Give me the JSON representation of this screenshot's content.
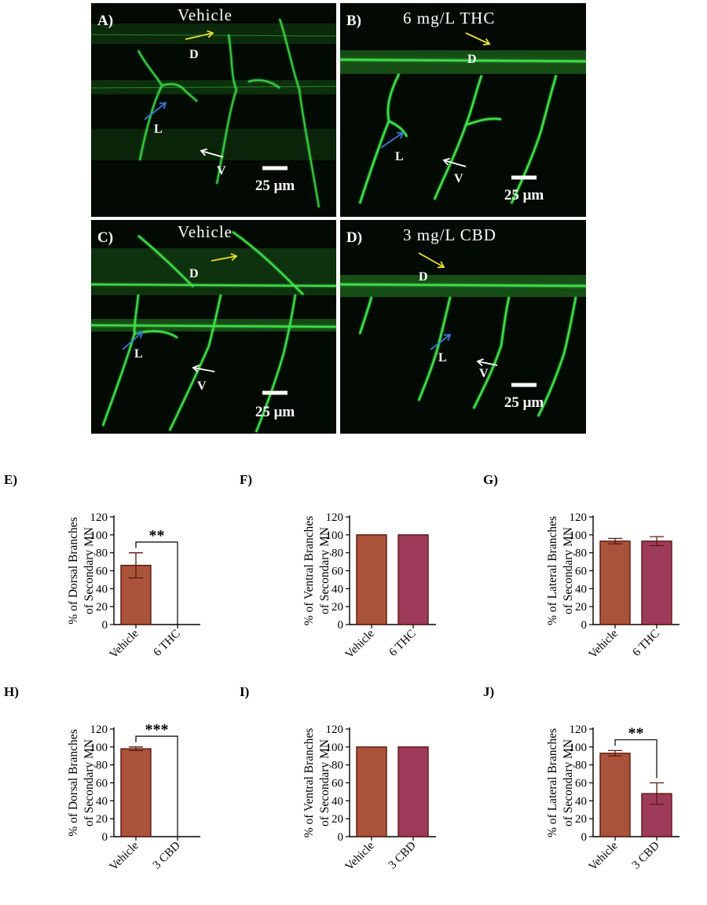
{
  "micrographs": [
    {
      "letter": "A)",
      "title": "Vehicle",
      "marks": {
        "D": "D",
        "L": "L",
        "V": "V"
      },
      "scale": "25 μm"
    },
    {
      "letter": "B)",
      "title": "6 mg/L THC",
      "marks": {
        "D": "D",
        "L": "L",
        "V": "V"
      },
      "scale": "25 μm"
    },
    {
      "letter": "C)",
      "title": "Vehicle",
      "marks": {
        "D": "D",
        "L": "L",
        "V": "V"
      },
      "scale": "25 μm"
    },
    {
      "letter": "D)",
      "title": "3 mg/L CBD",
      "marks": {
        "D": "D",
        "L": "L",
        "V": "V"
      },
      "scale": "25 μm"
    }
  ],
  "colors": {
    "vehicle_bar": "#a9533a",
    "treatment_bar": "#9e3a5a",
    "bar_edge": "#5a1a10",
    "micro_bg": "#030a03",
    "neuron": "#3fe04a",
    "arrow_dorsal": "#e8e030",
    "arrow_lateral": "#3a78d8",
    "arrow_ventral": "#ffffff"
  },
  "chart_data": [
    {
      "panel": "E)",
      "type": "bar",
      "categories": [
        "Vehicle",
        "6 THC"
      ],
      "values": [
        66,
        0
      ],
      "errors": [
        14,
        0
      ],
      "ylabel_lines": [
        "% of Dorsal Branches",
        "of Secondary MN"
      ],
      "ylim": [
        0,
        120
      ],
      "yticks": [
        "0",
        "20",
        "40",
        "60",
        "80",
        "100",
        "120"
      ],
      "significance": "**"
    },
    {
      "panel": "F)",
      "type": "bar",
      "categories": [
        "Vehicle",
        "6 THC"
      ],
      "values": [
        100,
        100
      ],
      "errors": [
        0,
        0
      ],
      "ylabel_lines": [
        "% of Ventral Branches",
        "of Secondary MN"
      ],
      "ylim": [
        0,
        120
      ],
      "yticks": [
        "0",
        "20",
        "40",
        "60",
        "80",
        "100",
        "120"
      ],
      "significance": ""
    },
    {
      "panel": "G)",
      "type": "bar",
      "categories": [
        "Vehicle",
        "6 THC"
      ],
      "values": [
        93,
        93
      ],
      "errors": [
        3,
        5
      ],
      "ylabel_lines": [
        "% of Lateral Branches",
        "of Secondary MN"
      ],
      "ylim": [
        0,
        120
      ],
      "yticks": [
        "0",
        "20",
        "40",
        "60",
        "80",
        "100",
        "120"
      ],
      "significance": ""
    },
    {
      "panel": "H)",
      "type": "bar",
      "categories": [
        "Vehicle",
        "3 CBD"
      ],
      "values": [
        98,
        0
      ],
      "errors": [
        2,
        0
      ],
      "ylabel_lines": [
        "% of Dorsal Branches",
        "of Secondary MN"
      ],
      "ylim": [
        0,
        120
      ],
      "yticks": [
        "0",
        "20",
        "40",
        "60",
        "80",
        "100",
        "120"
      ],
      "significance": "***"
    },
    {
      "panel": "I)",
      "type": "bar",
      "categories": [
        "Vehicle",
        "3 CBD"
      ],
      "values": [
        100,
        100
      ],
      "errors": [
        0,
        0
      ],
      "ylabel_lines": [
        "% of Ventral Branches",
        "of Secondary MN"
      ],
      "ylim": [
        0,
        120
      ],
      "yticks": [
        "0",
        "20",
        "40",
        "60",
        "80",
        "100",
        "120"
      ],
      "significance": ""
    },
    {
      "panel": "J)",
      "type": "bar",
      "categories": [
        "Vehicle",
        "3 CBD"
      ],
      "values": [
        93,
        48
      ],
      "errors": [
        3,
        12
      ],
      "ylabel_lines": [
        "% of Lateral Branches",
        "of Secondary MN"
      ],
      "ylim": [
        0,
        120
      ],
      "yticks": [
        "0",
        "20",
        "40",
        "60",
        "80",
        "100",
        "120"
      ],
      "significance": "**"
    }
  ]
}
